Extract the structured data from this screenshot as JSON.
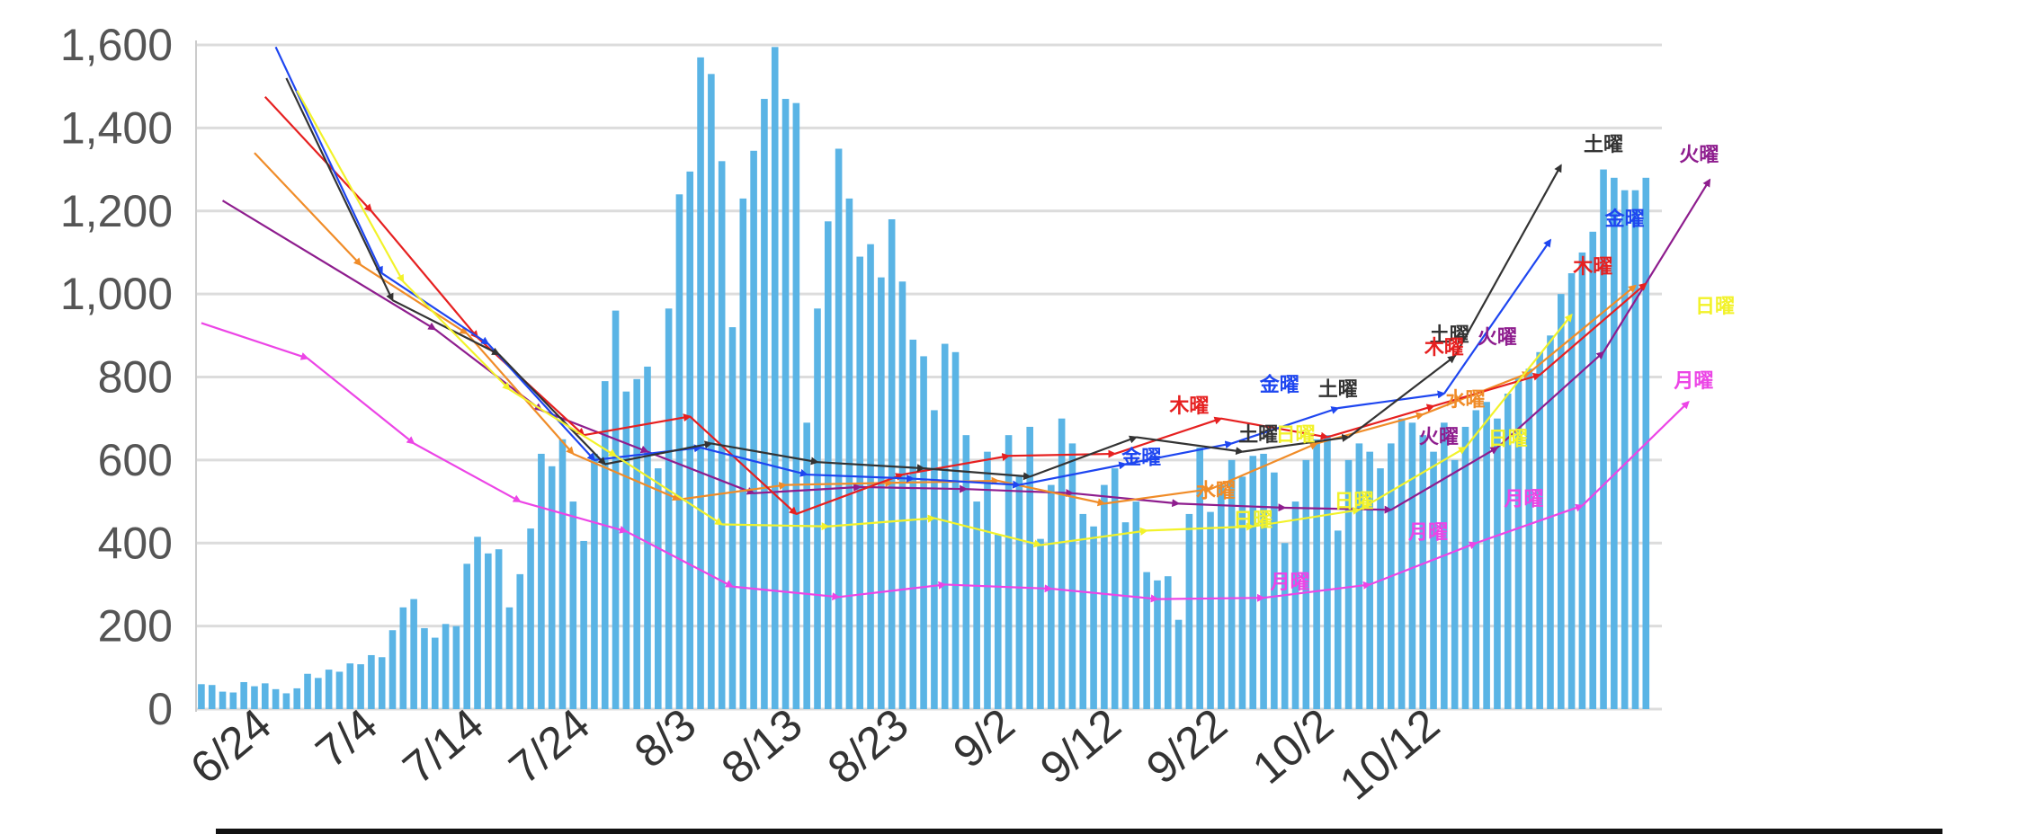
{
  "chart_data": {
    "type": "bar",
    "title": "",
    "xlabel": "",
    "ylabel": "",
    "ylim": [
      0,
      1600
    ],
    "yticks": [
      0,
      200,
      400,
      600,
      800,
      1000,
      1200,
      1400,
      1600
    ],
    "ytick_labels": [
      "0",
      "200",
      "400",
      "600",
      "800",
      "1,000",
      "1,200",
      "1,400",
      "1,600"
    ],
    "grid": true,
    "bar_color": "#5ab4e5",
    "start_date": "6/18",
    "xtick_labels": [
      "6/24",
      "7/4",
      "7/14",
      "7/24",
      "8/3",
      "8/13",
      "8/23",
      "9/2",
      "9/12",
      "9/22",
      "10/2",
      "10/12"
    ],
    "daily_values": [
      60,
      58,
      42,
      40,
      65,
      55,
      62,
      48,
      38,
      50,
      85,
      75,
      95,
      90,
      110,
      108,
      130,
      125,
      190,
      245,
      265,
      195,
      172,
      205,
      200,
      350,
      415,
      375,
      385,
      245,
      325,
      435,
      615,
      585,
      650,
      500,
      405,
      615,
      790,
      960,
      765,
      795,
      825,
      580,
      965,
      1240,
      1295,
      1570,
      1530,
      1320,
      920,
      1230,
      1345,
      1470,
      1595,
      1470,
      1460,
      690,
      965,
      1175,
      1350,
      1230,
      1090,
      1120,
      1040,
      1180,
      1030,
      890,
      850,
      720,
      880,
      860,
      660,
      500,
      620,
      420,
      660,
      560,
      680,
      410,
      540,
      700,
      640,
      470,
      440,
      540,
      580,
      450,
      500,
      330,
      310,
      320,
      215,
      470,
      630,
      475,
      540,
      600,
      560,
      610,
      615,
      570,
      400,
      500,
      600,
      650,
      660,
      430,
      600,
      640,
      620,
      580,
      640,
      700,
      690,
      660,
      620,
      690,
      600,
      680,
      720,
      740,
      700,
      760,
      800,
      820,
      860,
      900,
      1000,
      1050,
      1100,
      1150,
      1300,
      1280,
      1250,
      1250,
      1280
    ],
    "weekday_series": [
      {
        "name": "月曜",
        "color": "#ec45e6",
        "points": [
          [
            0,
            930
          ],
          [
            10,
            845
          ],
          [
            20,
            640
          ],
          [
            30,
            500
          ],
          [
            40,
            428
          ],
          [
            50,
            295
          ],
          [
            60,
            270
          ],
          [
            70,
            300
          ],
          [
            80,
            290
          ],
          [
            90,
            265
          ],
          [
            100,
            268
          ],
          [
            110,
            300
          ],
          [
            120,
            400
          ],
          [
            130,
            490
          ],
          [
            140,
            740
          ]
        ]
      },
      {
        "name": "火曜",
        "color": "#8e1d8e",
        "points": [
          [
            2,
            1225
          ],
          [
            22,
            915
          ],
          [
            32,
            720
          ],
          [
            42,
            620
          ],
          [
            52,
            520
          ],
          [
            62,
            535
          ],
          [
            72,
            530
          ],
          [
            82,
            520
          ],
          [
            92,
            495
          ],
          [
            102,
            485
          ],
          [
            112,
            480
          ],
          [
            122,
            630
          ],
          [
            132,
            860
          ],
          [
            142,
            1275
          ]
        ]
      },
      {
        "name": "水曜",
        "color": "#f08c28",
        "points": [
          [
            5,
            1340
          ],
          [
            15,
            1070
          ],
          [
            25,
            905
          ],
          [
            35,
            615
          ],
          [
            45,
            505
          ],
          [
            55,
            540
          ],
          [
            65,
            545
          ],
          [
            75,
            550
          ],
          [
            85,
            495
          ],
          [
            95,
            530
          ],
          [
            105,
            640
          ],
          [
            115,
            710
          ],
          [
            125,
            810
          ],
          [
            135,
            1020
          ]
        ]
      },
      {
        "name": "木曜",
        "color": "#e62020",
        "points": [
          [
            6,
            1475
          ],
          [
            16,
            1200
          ],
          [
            26,
            895
          ],
          [
            36,
            660
          ],
          [
            46,
            705
          ],
          [
            56,
            470
          ],
          [
            66,
            565
          ],
          [
            76,
            610
          ],
          [
            86,
            615
          ],
          [
            96,
            700
          ],
          [
            106,
            655
          ],
          [
            116,
            730
          ],
          [
            126,
            805
          ],
          [
            136,
            1025
          ]
        ]
      },
      {
        "name": "金曜",
        "color": "#1e46f0",
        "points": [
          [
            7,
            1595
          ],
          [
            17,
            1050
          ],
          [
            27,
            880
          ],
          [
            37,
            600
          ],
          [
            47,
            630
          ],
          [
            57,
            565
          ],
          [
            67,
            555
          ],
          [
            77,
            540
          ],
          [
            87,
            590
          ],
          [
            97,
            640
          ],
          [
            107,
            725
          ],
          [
            117,
            760
          ],
          [
            127,
            1130
          ]
        ]
      },
      {
        "name": "土曜",
        "color": "#333333",
        "points": [
          [
            8,
            1520
          ],
          [
            18,
            985
          ],
          [
            28,
            855
          ],
          [
            38,
            590
          ],
          [
            48,
            640
          ],
          [
            58,
            595
          ],
          [
            68,
            580
          ],
          [
            78,
            560
          ],
          [
            88,
            655
          ],
          [
            98,
            620
          ],
          [
            108,
            655
          ],
          [
            118,
            850
          ],
          [
            128,
            1310
          ]
        ]
      },
      {
        "name": "日曜",
        "color": "#f2f22a",
        "points": [
          [
            9,
            1490
          ],
          [
            19,
            1030
          ],
          [
            29,
            770
          ],
          [
            39,
            610
          ],
          [
            49,
            445
          ],
          [
            59,
            440
          ],
          [
            69,
            460
          ],
          [
            79,
            395
          ],
          [
            89,
            430
          ],
          [
            99,
            440
          ],
          [
            109,
            480
          ],
          [
            119,
            630
          ],
          [
            129,
            950
          ]
        ]
      }
    ],
    "labels": [
      {
        "text": "土曜",
        "color": "#333333",
        "x": 132.0,
        "y": 1345
      },
      {
        "text": "火曜",
        "color": "#8e1d8e",
        "x": 141.0,
        "y": 1320
      },
      {
        "text": "金曜",
        "color": "#1e46f0",
        "x": 134.0,
        "y": 1165
      },
      {
        "text": "木曜",
        "color": "#e62020",
        "x": 131.0,
        "y": 1050
      },
      {
        "text": "日曜",
        "color": "#f2f22a",
        "x": 142.5,
        "y": 955
      },
      {
        "text": "土曜",
        "color": "#333333",
        "x": 117.5,
        "y": 885
      },
      {
        "text": "木曜",
        "color": "#e62020",
        "x": 117.0,
        "y": 855
      },
      {
        "text": "火曜",
        "color": "#8e1d8e",
        "x": 122.0,
        "y": 880
      },
      {
        "text": "月曜",
        "color": "#ec45e6",
        "x": 140.5,
        "y": 775
      },
      {
        "text": "金曜",
        "color": "#1e46f0",
        "x": 101.5,
        "y": 765
      },
      {
        "text": "土曜",
        "color": "#333333",
        "x": 107.0,
        "y": 755
      },
      {
        "text": "水曜",
        "color": "#f08c28",
        "x": 119.0,
        "y": 730
      },
      {
        "text": "木曜",
        "color": "#e62020",
        "x": 93.0,
        "y": 715
      },
      {
        "text": "火曜",
        "color": "#8e1d8e",
        "x": 116.5,
        "y": 640
      },
      {
        "text": "日曜",
        "color": "#f2f22a",
        "x": 123.0,
        "y": 635
      },
      {
        "text": "土曜",
        "color": "#333333",
        "x": 99.5,
        "y": 645
      },
      {
        "text": "日曜",
        "color": "#f2f22a",
        "x": 103.0,
        "y": 645
      },
      {
        "text": "金曜",
        "color": "#1e46f0",
        "x": 88.5,
        "y": 590
      },
      {
        "text": "水曜",
        "color": "#f08c28",
        "x": 95.5,
        "y": 510
      },
      {
        "text": "月曜",
        "color": "#ec45e6",
        "x": 124.5,
        "y": 490
      },
      {
        "text": "日曜",
        "color": "#f2f22a",
        "x": 108.5,
        "y": 485
      },
      {
        "text": "月曜",
        "color": "#ec45e6",
        "x": 115.5,
        "y": 410
      },
      {
        "text": "日曜",
        "color": "#f2f22a",
        "x": 99.0,
        "y": 440
      },
      {
        "text": "月曜",
        "color": "#ec45e6",
        "x": 102.5,
        "y": 290
      }
    ]
  }
}
